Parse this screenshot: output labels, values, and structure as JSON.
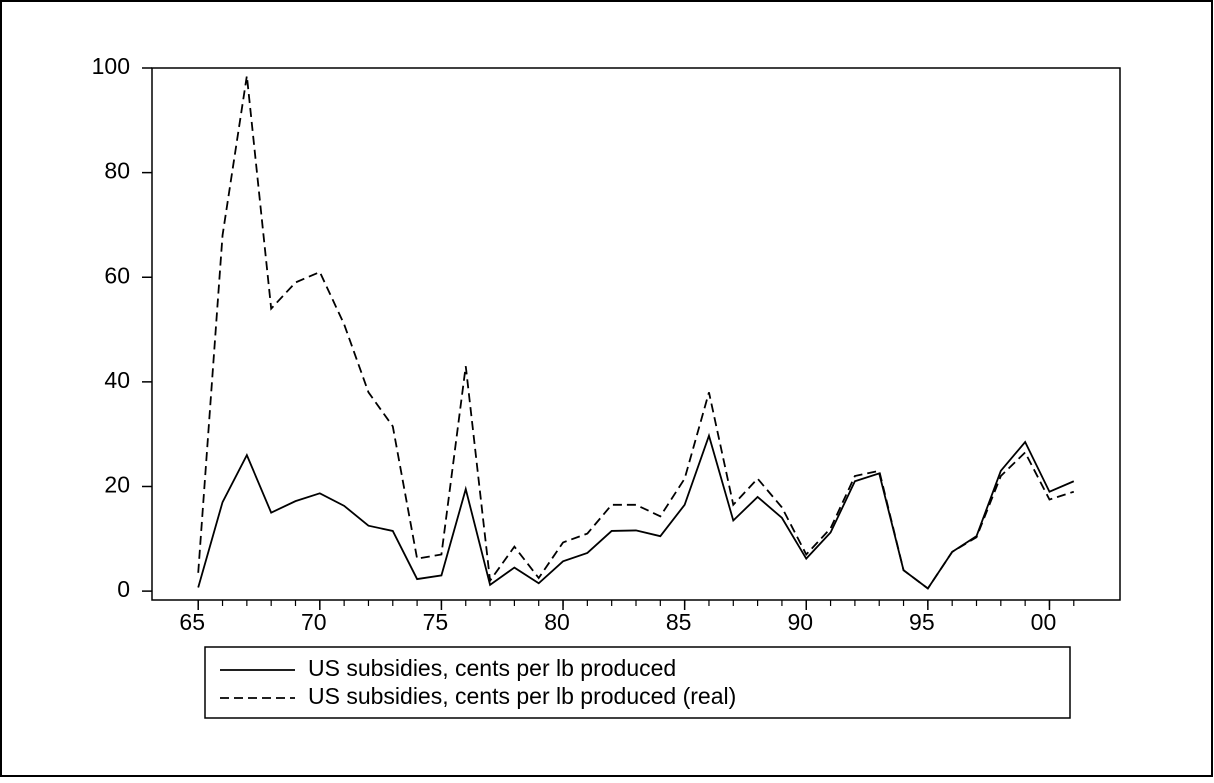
{
  "chart_data": {
    "type": "line",
    "x": [
      1965,
      1966,
      1967,
      1968,
      1969,
      1970,
      1971,
      1972,
      1973,
      1974,
      1975,
      1976,
      1977,
      1978,
      1979,
      1980,
      1981,
      1982,
      1983,
      1984,
      1985,
      1986,
      1987,
      1988,
      1989,
      1990,
      1991,
      1992,
      1993,
      1994,
      1995,
      1996,
      1997,
      1998,
      1999,
      2000,
      2001
    ],
    "series": [
      {
        "name": "US subsidies, cents per lb produced",
        "color": "#000000",
        "dash": "solid",
        "values": [
          0.7,
          17,
          26,
          15,
          17.2,
          18.7,
          16.3,
          12.5,
          11.5,
          2.3,
          3,
          19.5,
          1.2,
          4.5,
          1.5,
          5.7,
          7.3,
          11.5,
          11.6,
          10.5,
          16.5,
          29.7,
          13.5,
          18,
          14,
          6.2,
          11.2,
          21,
          22.5,
          4,
          0.5,
          7.5,
          10.5,
          23,
          28.5,
          19,
          21
        ]
      },
      {
        "name": "US subsidies, cents per lb produced (real)",
        "color": "#000000",
        "dash": "dashed",
        "values": [
          3.5,
          68,
          98.5,
          54,
          59,
          61,
          51,
          38,
          31.5,
          6.2,
          7,
          43,
          2,
          8.5,
          2.5,
          9.3,
          11,
          16.5,
          16.5,
          14.3,
          21.5,
          38,
          16.5,
          21.5,
          16,
          7,
          12,
          22,
          23,
          4,
          0.5,
          7.5,
          10.3,
          22,
          26.5,
          17.5,
          19
        ]
      }
    ],
    "xlim": [
      1963.1,
      2002.9
    ],
    "xticks": [
      {
        "value": 1965,
        "label": "65"
      },
      {
        "value": 1970,
        "label": "70"
      },
      {
        "value": 1975,
        "label": "75"
      },
      {
        "value": 1980,
        "label": "80"
      },
      {
        "value": 1985,
        "label": "85"
      },
      {
        "value": 1990,
        "label": "90"
      },
      {
        "value": 1995,
        "label": "95"
      },
      {
        "value": 2000,
        "label": "00"
      }
    ],
    "ylim": [
      -1.7,
      100
    ],
    "yticks": [
      0,
      20,
      40,
      60,
      80,
      100
    ],
    "grid": false,
    "legend": "bottom"
  }
}
